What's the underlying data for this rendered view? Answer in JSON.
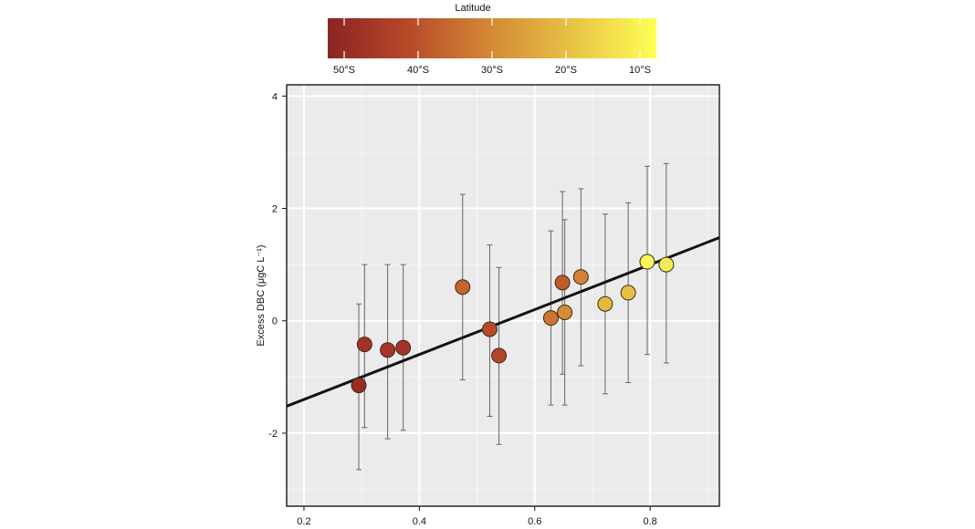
{
  "chart_data": {
    "type": "scatter",
    "title": "",
    "xlabel": "",
    "ylabel": "Excess DBC (μgC L⁻¹)",
    "xlim": [
      0.17,
      0.92
    ],
    "ylim": [
      -3.3,
      4.2
    ],
    "xticks": [
      0.2,
      0.4,
      0.6,
      0.8
    ],
    "xtick_labels": [
      "0.2",
      "0.4",
      "0.6",
      "0.8"
    ],
    "yticks": [
      -2,
      0,
      2,
      4
    ],
    "ytick_labels": [
      "-2",
      "0",
      "2",
      "4"
    ],
    "grid": true,
    "colorbar": {
      "label": "Latitude",
      "ticks": [
        "50°S",
        "40°S",
        "30°S",
        "20°S",
        "10°S"
      ],
      "colors": [
        "#8b2323",
        "#b84a2a",
        "#d38a35",
        "#e8c446",
        "#ffff55"
      ]
    },
    "fit_line": {
      "slope": 4.0,
      "intercept": -2.2
    },
    "points": [
      {
        "x": 0.295,
        "y": -1.15,
        "err_low": -2.65,
        "err_high": 0.3,
        "color": "#9a2a24"
      },
      {
        "x": 0.305,
        "y": -0.42,
        "err_low": -1.9,
        "err_high": 1.0,
        "color": "#a33227"
      },
      {
        "x": 0.345,
        "y": -0.52,
        "err_low": -2.1,
        "err_high": 1.0,
        "color": "#a63527"
      },
      {
        "x": 0.372,
        "y": -0.48,
        "err_low": -1.95,
        "err_high": 1.0,
        "color": "#a33227"
      },
      {
        "x": 0.475,
        "y": 0.6,
        "err_low": -1.05,
        "err_high": 2.25,
        "color": "#c6632e"
      },
      {
        "x": 0.522,
        "y": -0.15,
        "err_low": -1.7,
        "err_high": 1.35,
        "color": "#b84a2a"
      },
      {
        "x": 0.538,
        "y": -0.62,
        "err_low": -2.2,
        "err_high": 0.95,
        "color": "#b4442a"
      },
      {
        "x": 0.628,
        "y": 0.05,
        "err_low": -1.5,
        "err_high": 1.6,
        "color": "#cd7432"
      },
      {
        "x": 0.648,
        "y": 0.68,
        "err_low": -0.95,
        "err_high": 2.3,
        "color": "#c05a2c"
      },
      {
        "x": 0.652,
        "y": 0.15,
        "err_low": -1.5,
        "err_high": 1.8,
        "color": "#d68b36"
      },
      {
        "x": 0.68,
        "y": 0.78,
        "err_low": -0.8,
        "err_high": 2.35,
        "color": "#d38235"
      },
      {
        "x": 0.722,
        "y": 0.3,
        "err_low": -1.3,
        "err_high": 1.9,
        "color": "#e6b840"
      },
      {
        "x": 0.762,
        "y": 0.5,
        "err_low": -1.1,
        "err_high": 2.1,
        "color": "#e8bf44"
      },
      {
        "x": 0.795,
        "y": 1.05,
        "err_low": -0.6,
        "err_high": 2.75,
        "color": "#fbf75a"
      },
      {
        "x": 0.828,
        "y": 1.0,
        "err_low": -0.75,
        "err_high": 2.8,
        "color": "#f6ec55"
      }
    ]
  }
}
